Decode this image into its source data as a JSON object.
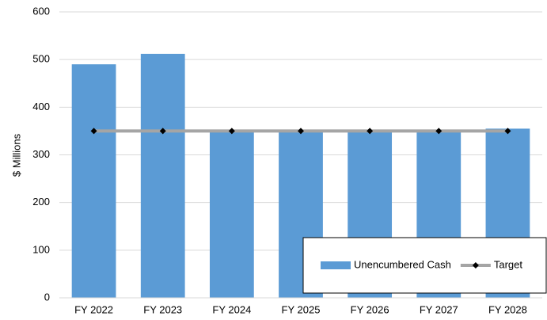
{
  "chart_data": {
    "type": "bar",
    "y_label": "$ Millions",
    "categories": [
      "FY 2022",
      "FY 2023",
      "FY 2024",
      "FY 2025",
      "FY 2026",
      "FY 2027",
      "FY 2028"
    ],
    "series": [
      {
        "name": "Unencumbered Cash",
        "type": "bar",
        "color": "#5b9bd5",
        "values": [
          490,
          512,
          350,
          350,
          350,
          352,
          355
        ]
      },
      {
        "name": "Target",
        "type": "line",
        "color": "#a5a5a5",
        "marker_color": "#000000",
        "values": [
          350,
          350,
          350,
          350,
          350,
          350,
          350
        ]
      }
    ],
    "ylim": [
      0,
      600
    ],
    "yticks": [
      0,
      100,
      200,
      300,
      400,
      500,
      600
    ],
    "grid": true,
    "legend": "lower right"
  }
}
